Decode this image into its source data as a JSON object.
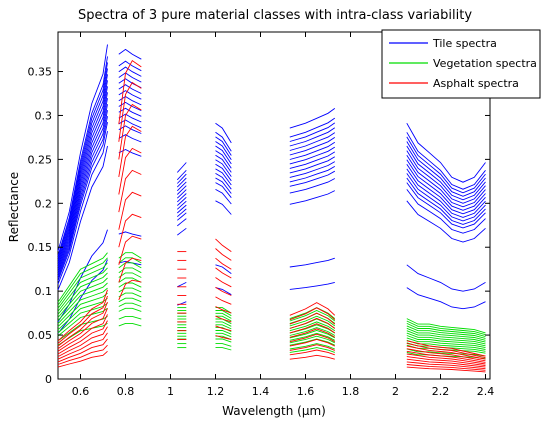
{
  "chart_data": {
    "type": "line",
    "title": "Spectra of 3 pure material classes with intra-class variability",
    "xlabel": "Wavelength (µm)",
    "ylabel": "Reflectance",
    "xlim": [
      0.5,
      2.42
    ],
    "ylim": [
      0,
      0.395
    ],
    "x_ticks": [
      0.6,
      0.8,
      1,
      1.2,
      1.4,
      1.6,
      1.8,
      2,
      2.2,
      2.4
    ],
    "x_tick_labels": [
      "0.6",
      "0.8",
      "1",
      "1.2",
      "1.4",
      "1.6",
      "1.8",
      "2",
      "2.2",
      "2.4"
    ],
    "y_ticks": [
      0,
      0.05,
      0.1,
      0.15,
      0.2,
      0.25,
      0.3,
      0.35
    ],
    "y_tick_labels": [
      "0",
      "0.05",
      "0.1",
      "0.15",
      "0.2",
      "0.25",
      "0.3",
      "0.35"
    ],
    "grid": false,
    "legend_position": "top-right",
    "segments": [
      [
        0.5,
        0.72
      ],
      [
        0.77,
        0.87
      ],
      [
        1.03,
        1.07
      ],
      [
        1.2,
        1.27
      ],
      [
        1.53,
        1.73
      ],
      [
        2.05,
        2.4
      ]
    ],
    "series": [
      {
        "name": "Tile spectra",
        "color": "#0000ff",
        "profile": [
          [
            0.5,
            0.13
          ],
          [
            0.55,
            0.17
          ],
          [
            0.6,
            0.23
          ],
          [
            0.65,
            0.28
          ],
          [
            0.7,
            0.31
          ],
          [
            0.72,
            0.34
          ],
          [
            0.77,
            0.33
          ],
          [
            0.8,
            0.335
          ],
          [
            0.83,
            0.33
          ],
          [
            0.87,
            0.325
          ],
          [
            1.03,
            0.21
          ],
          [
            1.05,
            0.215
          ],
          [
            1.07,
            0.22
          ],
          [
            1.2,
            0.26
          ],
          [
            1.23,
            0.255
          ],
          [
            1.27,
            0.24
          ],
          [
            1.53,
            0.255
          ],
          [
            1.6,
            0.26
          ],
          [
            1.65,
            0.265
          ],
          [
            1.7,
            0.27
          ],
          [
            1.73,
            0.275
          ],
          [
            2.05,
            0.26
          ],
          [
            2.1,
            0.24
          ],
          [
            2.15,
            0.23
          ],
          [
            2.2,
            0.22
          ],
          [
            2.25,
            0.205
          ],
          [
            2.3,
            0.2
          ],
          [
            2.35,
            0.205
          ],
          [
            2.4,
            0.22
          ]
        ],
        "scales": [
          0.4,
          0.5,
          0.78,
          0.83,
          0.86,
          0.88,
          0.9,
          0.92,
          0.94,
          0.96,
          0.98,
          1.0,
          1.02,
          1.04,
          1.06,
          1.08,
          1.12
        ]
      },
      {
        "name": "Vegetation spectra",
        "color": "#00dd00",
        "profile": [
          [
            0.5,
            0.07
          ],
          [
            0.55,
            0.085
          ],
          [
            0.6,
            0.1
          ],
          [
            0.65,
            0.105
          ],
          [
            0.7,
            0.11
          ],
          [
            0.72,
            0.115
          ],
          [
            0.77,
            0.11
          ],
          [
            0.8,
            0.115
          ],
          [
            0.83,
            0.115
          ],
          [
            0.87,
            0.11
          ],
          [
            1.03,
            0.065
          ],
          [
            1.05,
            0.065
          ],
          [
            1.07,
            0.065
          ],
          [
            1.2,
            0.065
          ],
          [
            1.23,
            0.065
          ],
          [
            1.27,
            0.06
          ],
          [
            1.53,
            0.055
          ],
          [
            1.6,
            0.06
          ],
          [
            1.65,
            0.065
          ],
          [
            1.7,
            0.06
          ],
          [
            1.73,
            0.055
          ],
          [
            2.05,
            0.055
          ],
          [
            2.1,
            0.05
          ],
          [
            2.15,
            0.05
          ],
          [
            2.2,
            0.048
          ],
          [
            2.25,
            0.047
          ],
          [
            2.3,
            0.046
          ],
          [
            2.35,
            0.045
          ],
          [
            2.4,
            0.042
          ]
        ],
        "scales": [
          0.55,
          0.62,
          0.7,
          0.75,
          0.8,
          0.85,
          0.9,
          0.95,
          1.0,
          1.05,
          1.1,
          1.15,
          1.2,
          1.25
        ]
      },
      {
        "name": "Asphalt spectra",
        "color": "#ff0000",
        "profile": [
          [
            0.5,
            0.03
          ],
          [
            0.55,
            0.038
          ],
          [
            0.6,
            0.045
          ],
          [
            0.65,
            0.055
          ],
          [
            0.7,
            0.06
          ],
          [
            0.72,
            0.07
          ],
          [
            0.77,
            0.2
          ],
          [
            0.8,
            0.24
          ],
          [
            0.83,
            0.25
          ],
          [
            0.87,
            0.245
          ],
          [
            1.03,
            0.1
          ],
          [
            1.05,
            0.1
          ],
          [
            1.07,
            0.1
          ],
          [
            1.2,
            0.11
          ],
          [
            1.23,
            0.105
          ],
          [
            1.27,
            0.1
          ],
          [
            1.53,
            0.05
          ],
          [
            1.6,
            0.055
          ],
          [
            1.65,
            0.06
          ],
          [
            1.7,
            0.055
          ],
          [
            1.73,
            0.05
          ],
          [
            2.05,
            0.03
          ],
          [
            2.1,
            0.028
          ],
          [
            2.15,
            0.026
          ],
          [
            2.2,
            0.025
          ],
          [
            2.25,
            0.024
          ],
          [
            2.3,
            0.022
          ],
          [
            2.35,
            0.02
          ],
          [
            2.4,
            0.018
          ]
        ],
        "scales": [
          0.45,
          0.55,
          0.65,
          0.75,
          0.85,
          0.95,
          1.05,
          1.15,
          1.25,
          1.35,
          1.45
        ]
      }
    ]
  }
}
